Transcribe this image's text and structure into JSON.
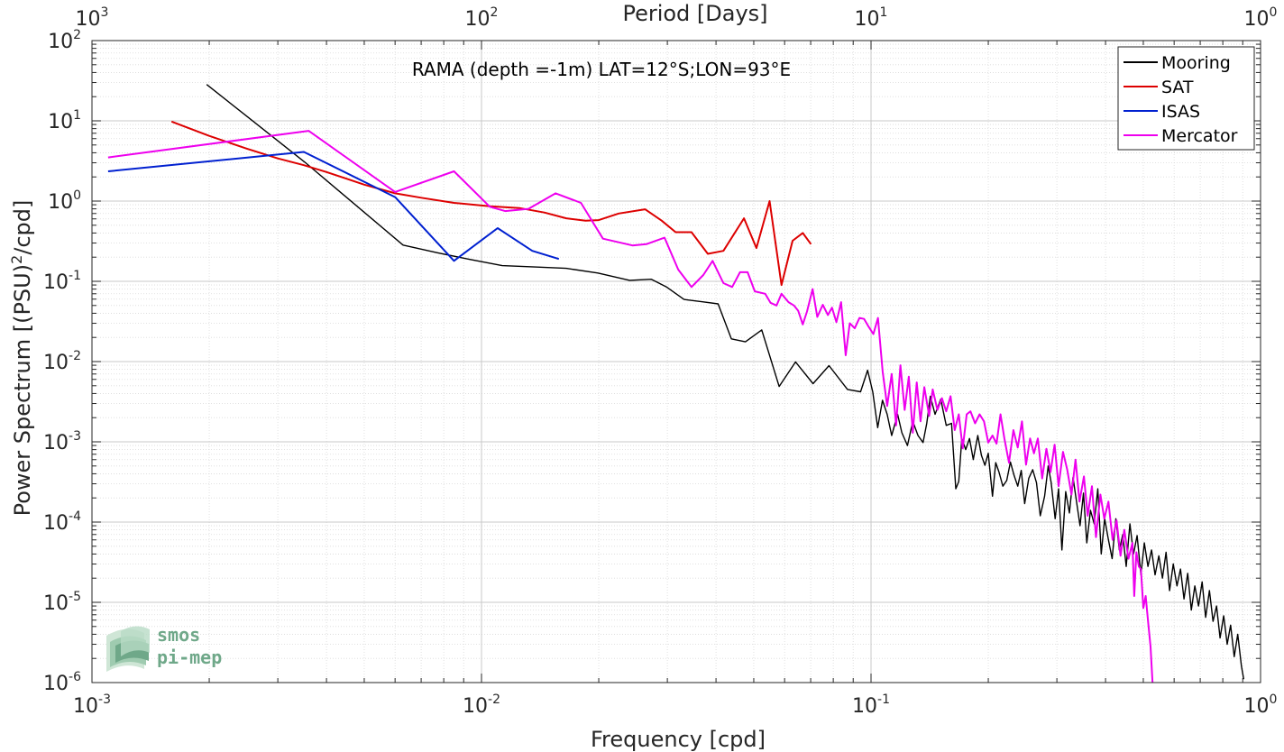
{
  "chart_data": {
    "type": "line",
    "title": "RAMA (depth =-1m) LAT=12°S;LON=93°E",
    "xlabel": "Frequency [cpd]",
    "ylabel": "Power Spectrum [(PSU)^2/cpd]",
    "ylabel_parts": {
      "main": "Power Spectrum [(PSU)",
      "sup": "2",
      "end": "/cpd]"
    },
    "top_xlabel": "Period [Days]",
    "xscale": "log",
    "yscale": "log",
    "xlim": [
      0.001,
      1
    ],
    "ylim": [
      1e-06,
      100
    ],
    "grid": true,
    "minor_grid": true,
    "legend_position": "top-right",
    "x_ticks": [
      {
        "value": 0.001,
        "base": "10",
        "exp": "-3"
      },
      {
        "value": 0.01,
        "base": "10",
        "exp": "-2"
      },
      {
        "value": 0.1,
        "base": "10",
        "exp": "-1"
      },
      {
        "value": 1,
        "base": "10",
        "exp": "0"
      }
    ],
    "top_ticks": [
      {
        "freq": 0.001,
        "base": "10",
        "exp": "3"
      },
      {
        "freq": 0.01,
        "base": "10",
        "exp": "2"
      },
      {
        "freq": 0.1,
        "base": "10",
        "exp": "1"
      },
      {
        "freq": 1,
        "base": "10",
        "exp": "0"
      }
    ],
    "y_ticks": [
      {
        "value": 100,
        "base": "10",
        "exp": "2"
      },
      {
        "value": 10,
        "base": "10",
        "exp": "1"
      },
      {
        "value": 1,
        "base": "10",
        "exp": "0"
      },
      {
        "value": 0.1,
        "base": "10",
        "exp": "-1"
      },
      {
        "value": 0.01,
        "base": "10",
        "exp": "-2"
      },
      {
        "value": 0.001,
        "base": "10",
        "exp": "-3"
      },
      {
        "value": 0.0001,
        "base": "10",
        "exp": "-4"
      },
      {
        "value": 1e-05,
        "base": "10",
        "exp": "-5"
      },
      {
        "value": 1e-06,
        "base": "10",
        "exp": "-6"
      }
    ],
    "series": [
      {
        "name": "Mooring",
        "color": "#000000",
        "points": [
          [
            0.00197,
            28.4
          ],
          [
            0.00352,
            3.05
          ],
          [
            0.00629,
            0.283
          ],
          [
            0.0077,
            0.227
          ],
          [
            0.0093,
            0.188
          ],
          [
            0.0113,
            0.157
          ],
          [
            0.0137,
            0.151
          ],
          [
            0.0165,
            0.145
          ],
          [
            0.0199,
            0.127
          ],
          [
            0.024,
            0.103
          ],
          [
            0.0273,
            0.106
          ],
          [
            0.0298,
            0.0855
          ],
          [
            0.0331,
            0.0594
          ],
          [
            0.0371,
            0.0554
          ],
          [
            0.0405,
            0.0524
          ],
          [
            0.0438,
            0.0192
          ],
          [
            0.0476,
            0.0176
          ],
          [
            0.0524,
            0.0248
          ],
          [
            0.0581,
            0.0049
          ],
          [
            0.064,
            0.0099
          ],
          [
            0.071,
            0.0053
          ],
          [
            0.078,
            0.0089
          ],
          [
            0.087,
            0.0045
          ],
          [
            0.094,
            0.0042
          ],
          [
            0.098,
            0.0078
          ],
          [
            0.101,
            0.0042
          ],
          [
            0.104,
            0.0015
          ],
          [
            0.107,
            0.0033
          ],
          [
            0.11,
            0.0022
          ],
          [
            0.113,
            0.0012
          ],
          [
            0.117,
            0.0022
          ],
          [
            0.12,
            0.0013
          ],
          [
            0.124,
            0.0009
          ],
          [
            0.128,
            0.0018
          ],
          [
            0.132,
            0.0012
          ],
          [
            0.136,
            0.00098
          ],
          [
            0.139,
            0.0017
          ],
          [
            0.142,
            0.0037
          ],
          [
            0.146,
            0.0022
          ],
          [
            0.151,
            0.0034
          ],
          [
            0.156,
            0.0016
          ],
          [
            0.161,
            0.0017
          ],
          [
            0.165,
            0.00026
          ],
          [
            0.168,
            0.00032
          ],
          [
            0.171,
            0.0011
          ],
          [
            0.175,
            0.0008
          ],
          [
            0.179,
            0.0011
          ],
          [
            0.183,
            0.0006
          ],
          [
            0.188,
            0.0012
          ],
          [
            0.192,
            0.00068
          ],
          [
            0.196,
            0.00051
          ],
          [
            0.2,
            0.00072
          ],
          [
            0.205,
            0.00021
          ],
          [
            0.209,
            0.00055
          ],
          [
            0.213,
            0.00042
          ],
          [
            0.218,
            0.00028
          ],
          [
            0.223,
            0.00033
          ],
          [
            0.228,
            0.00056
          ],
          [
            0.233,
            0.00038
          ],
          [
            0.238,
            0.00028
          ],
          [
            0.243,
            0.00044
          ],
          [
            0.248,
            0.00017
          ],
          [
            0.254,
            0.00035
          ],
          [
            0.26,
            0.00045
          ],
          [
            0.266,
            0.00031
          ],
          [
            0.272,
            0.00012
          ],
          [
            0.279,
            0.00021
          ],
          [
            0.285,
            0.0005
          ],
          [
            0.29,
            0.00031
          ],
          [
            0.297,
            0.00011
          ],
          [
            0.303,
            0.00026
          ],
          [
            0.309,
            4.5e-05
          ],
          [
            0.316,
            0.00024
          ],
          [
            0.323,
            0.00013
          ],
          [
            0.33,
            0.00036
          ],
          [
            0.337,
            0.00018
          ],
          [
            0.344,
            9e-05
          ],
          [
            0.351,
            0.00023
          ],
          [
            0.358,
            5.5e-05
          ],
          [
            0.366,
            0.00014
          ],
          [
            0.374,
            9.5e-05
          ],
          [
            0.382,
            0.00026
          ],
          [
            0.39,
            4e-05
          ],
          [
            0.398,
            0.00011
          ],
          [
            0.407,
            6e-05
          ],
          [
            0.416,
            3.5e-05
          ],
          [
            0.425,
            0.00011
          ],
          [
            0.434,
            4.5e-05
          ],
          [
            0.443,
            7e-05
          ],
          [
            0.452,
            2.8e-05
          ],
          [
            0.462,
            9.5e-05
          ],
          [
            0.472,
            4e-05
          ],
          [
            0.482,
            6.8e-05
          ],
          [
            0.493,
            2.2e-05
          ],
          [
            0.503,
            5.5e-05
          ],
          [
            0.514,
            2.8e-05
          ],
          [
            0.525,
            4.5e-05
          ],
          [
            0.536,
            2.2e-05
          ],
          [
            0.548,
            3.8e-05
          ],
          [
            0.56,
            2e-05
          ],
          [
            0.572,
            4.2e-05
          ],
          [
            0.584,
            1.4e-05
          ],
          [
            0.597,
            3e-05
          ],
          [
            0.61,
            1.6e-05
          ],
          [
            0.623,
            2.6e-05
          ],
          [
            0.636,
            1.1e-05
          ],
          [
            0.65,
            2.3e-05
          ],
          [
            0.664,
            8e-06
          ],
          [
            0.678,
            1.6e-05
          ],
          [
            0.693,
            9e-06
          ],
          [
            0.708,
            1.8e-05
          ],
          [
            0.723,
            6.5e-06
          ],
          [
            0.739,
            1.4e-05
          ],
          [
            0.755,
            5.8e-06
          ],
          [
            0.771,
            9e-06
          ],
          [
            0.787,
            3.6e-06
          ],
          [
            0.804,
            6.8e-06
          ],
          [
            0.821,
            3e-06
          ],
          [
            0.838,
            5.2e-06
          ],
          [
            0.856,
            2.1e-06
          ],
          [
            0.874,
            4e-06
          ],
          [
            0.893,
            1.6e-06
          ],
          [
            0.905,
            1.1e-06
          ]
        ]
      },
      {
        "name": "SAT",
        "color": "#dd0000",
        "points": [
          [
            0.0016,
            9.8
          ],
          [
            0.002,
            6.5
          ],
          [
            0.0025,
            4.5
          ],
          [
            0.003,
            3.4
          ],
          [
            0.0035,
            2.8
          ],
          [
            0.004,
            2.3
          ],
          [
            0.005,
            1.6
          ],
          [
            0.006,
            1.25
          ],
          [
            0.007,
            1.1
          ],
          [
            0.0085,
            0.95
          ],
          [
            0.0105,
            0.86
          ],
          [
            0.0125,
            0.82
          ],
          [
            0.0145,
            0.72
          ],
          [
            0.0165,
            0.61
          ],
          [
            0.0185,
            0.57
          ],
          [
            0.02,
            0.58
          ],
          [
            0.0225,
            0.7
          ],
          [
            0.0263,
            0.79
          ],
          [
            0.029,
            0.57
          ],
          [
            0.0315,
            0.41
          ],
          [
            0.0346,
            0.41
          ],
          [
            0.0381,
            0.22
          ],
          [
            0.0418,
            0.24
          ],
          [
            0.0472,
            0.61
          ],
          [
            0.0508,
            0.26
          ],
          [
            0.0549,
            1.0
          ],
          [
            0.0589,
            0.09
          ],
          [
            0.0629,
            0.32
          ],
          [
            0.0668,
            0.4
          ],
          [
            0.0701,
            0.29
          ]
        ]
      },
      {
        "name": "ISAS",
        "color": "#0020d0",
        "points": [
          [
            0.0011,
            2.35
          ],
          [
            0.0035,
            4.1
          ],
          [
            0.006,
            1.12
          ],
          [
            0.0085,
            0.18
          ],
          [
            0.011,
            0.46
          ],
          [
            0.0135,
            0.24
          ],
          [
            0.0158,
            0.19
          ]
        ]
      },
      {
        "name": "Mercator",
        "color": "#ee00ee",
        "points": [
          [
            0.0011,
            3.5
          ],
          [
            0.0036,
            7.5
          ],
          [
            0.006,
            1.3
          ],
          [
            0.0085,
            2.35
          ],
          [
            0.0105,
            0.85
          ],
          [
            0.0115,
            0.75
          ],
          [
            0.0132,
            0.8
          ],
          [
            0.0155,
            1.25
          ],
          [
            0.018,
            0.95
          ],
          [
            0.0205,
            0.34
          ],
          [
            0.0244,
            0.28
          ],
          [
            0.0265,
            0.29
          ],
          [
            0.0295,
            0.35
          ],
          [
            0.032,
            0.14
          ],
          [
            0.0346,
            0.085
          ],
          [
            0.0371,
            0.12
          ],
          [
            0.0392,
            0.18
          ],
          [
            0.0418,
            0.095
          ],
          [
            0.044,
            0.085
          ],
          [
            0.0461,
            0.13
          ],
          [
            0.0482,
            0.13
          ],
          [
            0.0503,
            0.075
          ],
          [
            0.0535,
            0.07
          ],
          [
            0.0552,
            0.054
          ],
          [
            0.0572,
            0.05
          ],
          [
            0.0589,
            0.07
          ],
          [
            0.0614,
            0.055
          ],
          [
            0.0634,
            0.05
          ],
          [
            0.065,
            0.043
          ],
          [
            0.0668,
            0.029
          ],
          [
            0.0685,
            0.042
          ],
          [
            0.0708,
            0.08
          ],
          [
            0.0728,
            0.036
          ],
          [
            0.0752,
            0.051
          ],
          [
            0.0775,
            0.038
          ],
          [
            0.0794,
            0.047
          ],
          [
            0.0815,
            0.031
          ],
          [
            0.0838,
            0.055
          ],
          [
            0.0861,
            0.012
          ],
          [
            0.0882,
            0.03
          ],
          [
            0.0908,
            0.026
          ],
          [
            0.0934,
            0.035
          ],
          [
            0.096,
            0.034
          ],
          [
            0.0987,
            0.027
          ],
          [
            0.1014,
            0.022
          ],
          [
            0.1042,
            0.035
          ],
          [
            0.1071,
            0.0075
          ],
          [
            0.11,
            0.0028
          ],
          [
            0.113,
            0.007
          ],
          [
            0.116,
            0.0016
          ],
          [
            0.119,
            0.009
          ],
          [
            0.122,
            0.0025
          ],
          [
            0.125,
            0.0065
          ],
          [
            0.128,
            0.0013
          ],
          [
            0.131,
            0.0055
          ],
          [
            0.134,
            0.0018
          ],
          [
            0.137,
            0.0048
          ],
          [
            0.141,
            0.0021
          ],
          [
            0.144,
            0.0045
          ],
          [
            0.148,
            0.0025
          ],
          [
            0.152,
            0.0035
          ],
          [
            0.156,
            0.0024
          ],
          [
            0.16,
            0.0037
          ],
          [
            0.164,
            0.0014
          ],
          [
            0.168,
            0.0022
          ],
          [
            0.172,
            0.00083
          ],
          [
            0.176,
            0.0022
          ],
          [
            0.18,
            0.0024
          ],
          [
            0.185,
            0.0017
          ],
          [
            0.19,
            0.0022
          ],
          [
            0.195,
            0.0018
          ],
          [
            0.2,
            0.00098
          ],
          [
            0.205,
            0.0012
          ],
          [
            0.21,
            0.00095
          ],
          [
            0.215,
            0.0022
          ],
          [
            0.22,
            0.0011
          ],
          [
            0.226,
            0.00055
          ],
          [
            0.232,
            0.0014
          ],
          [
            0.238,
            0.00085
          ],
          [
            0.244,
            0.0018
          ],
          [
            0.25,
            0.00052
          ],
          [
            0.256,
            0.0011
          ],
          [
            0.262,
            0.00072
          ],
          [
            0.268,
            0.0011
          ],
          [
            0.275,
            0.00035
          ],
          [
            0.282,
            0.00082
          ],
          [
            0.289,
            0.00042
          ],
          [
            0.296,
            0.00092
          ],
          [
            0.303,
            0.00028
          ],
          [
            0.311,
            0.00075
          ],
          [
            0.319,
            0.00045
          ],
          [
            0.327,
            0.00022
          ],
          [
            0.335,
            0.0006
          ],
          [
            0.343,
            0.00018
          ],
          [
            0.352,
            0.00037
          ],
          [
            0.36,
            0.00012
          ],
          [
            0.369,
            0.00028
          ],
          [
            0.378,
            6.5e-05
          ],
          [
            0.388,
            0.00022
          ],
          [
            0.397,
            0.00011
          ],
          [
            0.407,
            0.00018
          ],
          [
            0.417,
            6e-05
          ],
          [
            0.427,
            0.000105
          ],
          [
            0.437,
            3.8e-05
          ],
          [
            0.447,
            8e-05
          ],
          [
            0.458,
            3.5e-05
          ],
          [
            0.469,
            5.5e-05
          ],
          [
            0.474,
            1.2e-05
          ],
          [
            0.48,
            4.2e-05
          ],
          [
            0.487,
            2.8e-05
          ],
          [
            0.493,
            2.6e-05
          ],
          [
            0.5,
            8.5e-06
          ],
          [
            0.507,
            1.2e-05
          ],
          [
            0.514,
            6e-06
          ],
          [
            0.522,
            2.8e-06
          ],
          [
            0.528,
            1e-06
          ]
        ]
      }
    ]
  },
  "logo": {
    "line1": "smos",
    "line2": "pi-mep"
  }
}
